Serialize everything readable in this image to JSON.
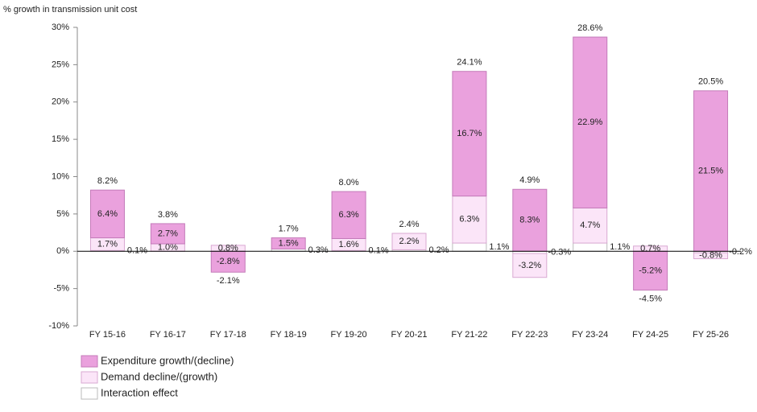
{
  "chart_data": {
    "type": "stacked_bar",
    "y_label": "% growth in transmission unit cost",
    "categories": [
      "FY 15-16",
      "FY 16-17",
      "FY 17-18",
      "FY 18-19",
      "FY 19-20",
      "FY 20-21",
      "FY 21-22",
      "FY 22-23",
      "FY 23-24",
      "FY 24-25",
      "FY 25-26"
    ],
    "series": [
      {
        "name": "Expenditure growth/(decline)",
        "color": "#eaa1dd",
        "stroke": "#c47ab9",
        "values": [
          6.4,
          2.7,
          -2.8,
          1.5,
          6.3,
          null,
          16.7,
          8.3,
          22.9,
          -5.2,
          21.5
        ],
        "value_labels": [
          "6.4%",
          "2.7%",
          "-2.8%",
          "1.5%",
          "6.3%",
          null,
          "16.7%",
          "8.3%",
          "22.9%",
          "-5.2%",
          "21.5%"
        ]
      },
      {
        "name": "Demand decline/(growth)",
        "color": "#fbe5f8",
        "stroke": "#d9a9d2",
        "values": [
          1.7,
          1.0,
          0.8,
          null,
          1.6,
          2.2,
          6.3,
          -3.2,
          4.7,
          0.7,
          -0.8
        ],
        "value_labels": [
          "1.7%",
          "1.0%",
          "0.8%",
          null,
          "1.6%",
          "2.2%",
          "6.3%",
          "-3.2%",
          "4.7%",
          "0.7%",
          "-0.8%"
        ]
      },
      {
        "name": "Interaction effect",
        "color": "#ffffff",
        "stroke": "#bbbbbb",
        "values": [
          0.1,
          null,
          null,
          0.3,
          0.1,
          0.2,
          1.1,
          -0.3,
          1.1,
          null,
          -0.2
        ],
        "value_labels": [
          "0.1%",
          null,
          null,
          "0.3%",
          "0.1%",
          "0.2%",
          "1.1%",
          "-0.3%",
          "1.1%",
          null,
          "-0.2%"
        ]
      }
    ],
    "totals": [
      8.2,
      3.8,
      -2.1,
      1.7,
      8.0,
      2.4,
      24.1,
      4.9,
      28.6,
      -4.5,
      20.5
    ],
    "total_labels": [
      "8.2%",
      "3.8%",
      "-2.1%",
      "1.7%",
      "8.0%",
      "2.4%",
      "24.1%",
      "4.9%",
      "28.6%",
      "-4.5%",
      "20.5%"
    ],
    "ylim": [
      -10,
      30
    ],
    "yticks": [
      {
        "value": -10,
        "label": "-10%"
      },
      {
        "value": -5,
        "label": "-5%"
      },
      {
        "value": 0,
        "label": "0%"
      },
      {
        "value": 5,
        "label": "5%"
      },
      {
        "value": 10,
        "label": "10%"
      },
      {
        "value": 15,
        "label": "15%"
      },
      {
        "value": 20,
        "label": "20%"
      },
      {
        "value": 25,
        "label": "25%"
      },
      {
        "value": 30,
        "label": "30%"
      }
    ],
    "legend": "bottom-left"
  }
}
